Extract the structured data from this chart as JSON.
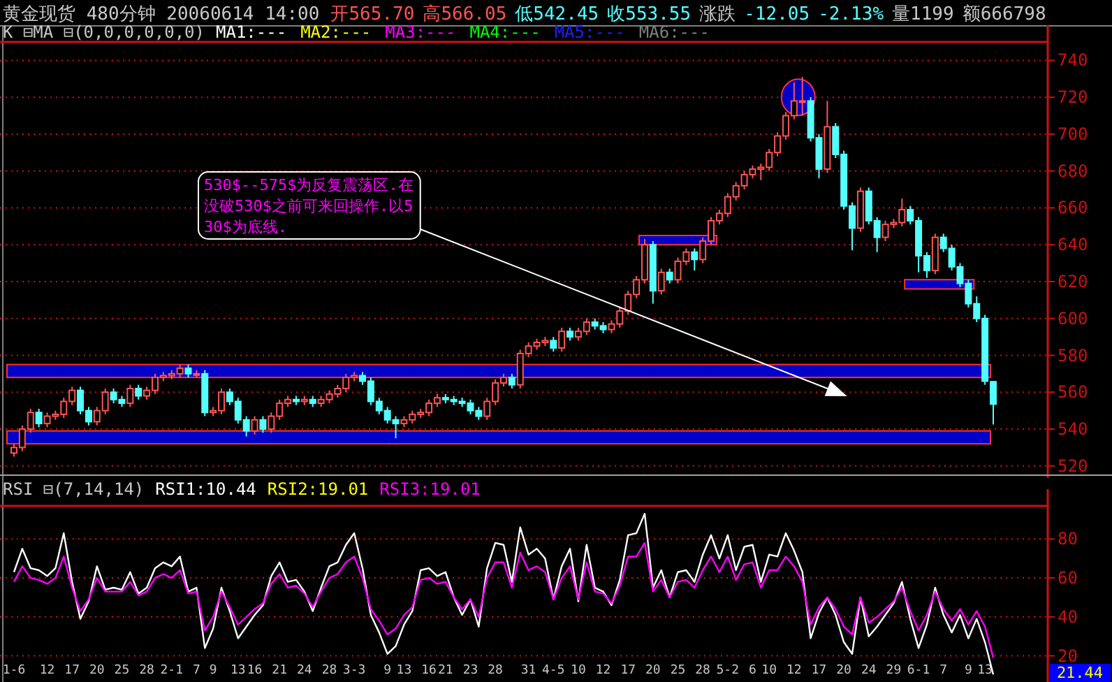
{
  "chart_data": [
    {
      "type": "candlestick",
      "title": "黄金现货 480分钟 20060614 14:00",
      "subtitle": "K ⊟MA ⊟(0,0,0,0,0,0)",
      "annotations": [
        "开565.70",
        "高566.05",
        "低542.45",
        "收553.55",
        "涨跌",
        "-12.05",
        "-2.13%",
        "量1199",
        "额666798",
        "MA1:---",
        "MA2:---",
        "MA3:---",
        "MA4:---",
        "MA5:---",
        "MA6:---",
        "530$--575$为反复震荡区.在没破530$之前可来回操作.以530$为底线."
      ],
      "categories": [
        null,
        null,
        null,
        null,
        null,
        null,
        null,
        null,
        null,
        null,
        null,
        null,
        null,
        null,
        null,
        null,
        null,
        null,
        null,
        null,
        null,
        null,
        null,
        null,
        null,
        null,
        null,
        null,
        null,
        null,
        null,
        null,
        null,
        null,
        null,
        null,
        null,
        null,
        null,
        null,
        null,
        null,
        null,
        null,
        null,
        null,
        null,
        null,
        null,
        null,
        null,
        null,
        null,
        null,
        null,
        null,
        null,
        null,
        null,
        null,
        null,
        null,
        null,
        null,
        null,
        null,
        null,
        null,
        null,
        null,
        null,
        null,
        null,
        null,
        null,
        null,
        null,
        null,
        null,
        null,
        null,
        null,
        null,
        null,
        null,
        null,
        null,
        null,
        null,
        null,
        null,
        null,
        null,
        null,
        null,
        null,
        null,
        null,
        null,
        null,
        null,
        null,
        null,
        null,
        null,
        null,
        null,
        null,
        null,
        null,
        null,
        null,
        null,
        null,
        null,
        null,
        null,
        null,
        null
      ],
      "ohlc": [
        [
          527,
          532,
          525,
          530
        ],
        [
          530,
          542,
          528,
          540
        ],
        [
          540,
          551,
          538,
          549
        ],
        [
          549,
          551,
          541,
          543
        ],
        [
          543,
          549,
          541,
          547
        ],
        [
          547,
          550,
          545,
          548
        ],
        [
          548,
          557,
          546,
          555
        ],
        [
          555,
          563,
          553,
          561
        ],
        [
          561,
          563,
          548,
          550
        ],
        [
          550,
          552,
          542,
          544
        ],
        [
          544,
          552,
          542,
          550
        ],
        [
          550,
          562,
          548,
          560
        ],
        [
          560,
          562,
          554,
          556
        ],
        [
          556,
          558,
          552,
          554
        ],
        [
          554,
          564,
          552,
          562
        ],
        [
          562,
          564,
          556,
          558
        ],
        [
          558,
          563,
          556,
          561
        ],
        [
          561,
          570,
          559,
          568
        ],
        [
          568,
          571,
          566,
          569
        ],
        [
          569,
          572,
          567,
          570
        ],
        [
          570,
          575,
          568,
          573
        ],
        [
          573,
          575,
          568,
          570
        ],
        [
          570,
          572,
          568,
          570
        ],
        [
          570,
          572,
          547,
          549
        ],
        [
          549,
          552,
          547,
          550
        ],
        [
          550,
          562,
          548,
          560
        ],
        [
          560,
          562,
          553,
          555
        ],
        [
          555,
          557,
          543,
          545
        ],
        [
          545,
          547,
          536,
          539
        ],
        [
          539,
          547,
          537,
          545
        ],
        [
          545,
          547,
          538,
          540
        ],
        [
          540,
          549,
          538,
          547
        ],
        [
          547,
          556,
          545,
          554
        ],
        [
          554,
          558,
          552,
          556
        ],
        [
          556,
          558,
          553,
          555
        ],
        [
          555,
          558,
          553,
          556
        ],
        [
          556,
          558,
          552,
          554
        ],
        [
          554,
          558,
          552,
          556
        ],
        [
          556,
          561,
          554,
          559
        ],
        [
          559,
          564,
          557,
          562
        ],
        [
          562,
          570,
          560,
          568
        ],
        [
          568,
          571,
          566,
          569
        ],
        [
          569,
          571,
          564,
          566
        ],
        [
          566,
          568,
          553,
          555
        ],
        [
          555,
          557,
          548,
          550
        ],
        [
          550,
          552,
          543,
          545
        ],
        [
          545,
          547,
          535,
          543
        ],
        [
          543,
          547,
          541,
          545
        ],
        [
          545,
          550,
          543,
          548
        ],
        [
          548,
          551,
          546,
          549
        ],
        [
          549,
          556,
          547,
          554
        ],
        [
          554,
          559,
          552,
          557
        ],
        [
          557,
          559,
          554,
          556
        ],
        [
          556,
          558,
          553,
          555
        ],
        [
          555,
          557,
          552,
          554
        ],
        [
          554,
          556,
          548,
          550
        ],
        [
          550,
          552,
          545,
          547
        ],
        [
          547,
          557,
          545,
          555
        ],
        [
          555,
          567,
          553,
          565
        ],
        [
          565,
          570,
          563,
          568
        ],
        [
          568,
          570,
          562,
          564
        ],
        [
          564,
          583,
          562,
          581
        ],
        [
          581,
          587,
          579,
          585
        ],
        [
          585,
          589,
          583,
          587
        ],
        [
          587,
          590,
          585,
          588
        ],
        [
          588,
          590,
          582,
          584
        ],
        [
          584,
          595,
          582,
          593
        ],
        [
          593,
          595,
          588,
          590
        ],
        [
          590,
          595,
          588,
          593
        ],
        [
          593,
          600,
          591,
          598
        ],
        [
          598,
          600,
          594,
          596
        ],
        [
          596,
          598,
          592,
          594
        ],
        [
          594,
          599,
          592,
          597
        ],
        [
          597,
          606,
          595,
          604
        ],
        [
          604,
          615,
          602,
          613
        ],
        [
          613,
          623,
          611,
          621
        ],
        [
          621,
          643,
          619,
          640
        ],
        [
          640,
          642,
          608,
          615
        ],
        [
          615,
          627,
          613,
          625
        ],
        [
          625,
          627,
          619,
          621
        ],
        [
          621,
          633,
          619,
          631
        ],
        [
          631,
          638,
          629,
          636
        ],
        [
          636,
          638,
          626,
          632
        ],
        [
          632,
          644,
          630,
          642
        ],
        [
          642,
          655,
          640,
          653
        ],
        [
          653,
          659,
          651,
          657
        ],
        [
          657,
          668,
          655,
          666
        ],
        [
          666,
          674,
          664,
          672
        ],
        [
          672,
          680,
          670,
          678
        ],
        [
          678,
          683,
          676,
          681
        ],
        [
          681,
          684,
          675,
          682
        ],
        [
          682,
          692,
          680,
          690
        ],
        [
          690,
          701,
          688,
          699
        ],
        [
          699,
          712,
          697,
          710
        ],
        [
          710,
          728,
          708,
          718
        ],
        [
          718,
          731,
          710,
          718
        ],
        [
          718,
          720,
          696,
          698
        ],
        [
          698,
          700,
          676,
          681
        ],
        [
          681,
          718,
          679,
          704
        ],
        [
          704,
          706,
          687,
          689
        ],
        [
          689,
          691,
          659,
          661
        ],
        [
          661,
          663,
          637,
          649
        ],
        [
          649,
          671,
          647,
          669
        ],
        [
          669,
          671,
          651,
          653
        ],
        [
          653,
          655,
          636,
          644
        ],
        [
          644,
          653,
          642,
          651
        ],
        [
          651,
          654,
          649,
          652
        ],
        [
          652,
          665,
          650,
          659
        ],
        [
          659,
          661,
          651,
          653
        ],
        [
          653,
          655,
          625,
          634
        ],
        [
          634,
          636,
          622,
          626
        ],
        [
          626,
          646,
          624,
          644
        ],
        [
          644,
          646,
          636,
          638
        ],
        [
          638,
          640,
          626,
          628
        ],
        [
          628,
          630,
          617,
          619
        ],
        [
          619,
          621,
          606,
          608
        ],
        [
          608,
          612,
          598,
          600
        ],
        [
          600,
          602,
          564,
          566
        ],
        [
          565.7,
          566.05,
          542.45,
          553.55
        ]
      ],
      "ylim": [
        515,
        750
      ],
      "yticks": [
        520,
        540,
        560,
        580,
        600,
        620,
        640,
        660,
        680,
        700,
        720,
        740
      ],
      "grid": "y",
      "bands": [
        {
          "axis": "y",
          "from": 568,
          "to": 575,
          "color": "#0000c8"
        },
        {
          "axis": "y",
          "from": 532,
          "to": 539,
          "color": "#0000c8"
        }
      ]
    },
    {
      "type": "line",
      "title": "RSI ⊟(7,14,14)",
      "categories": [
        "1-6",
        null,
        null,
        null,
        "12",
        null,
        null,
        "17",
        null,
        null,
        "20",
        null,
        null,
        "25",
        null,
        null,
        "28",
        null,
        null,
        "2-1",
        null,
        null,
        "7",
        null,
        "9",
        null,
        null,
        "13",
        null,
        "16",
        null,
        null,
        "21",
        null,
        null,
        "24",
        null,
        null,
        "28",
        null,
        null,
        "3-3",
        null,
        null,
        null,
        "9",
        null,
        "13",
        null,
        null,
        "16",
        null,
        "21",
        null,
        null,
        "23",
        null,
        null,
        "28",
        null,
        null,
        null,
        "31",
        null,
        null,
        "4-5",
        null,
        null,
        "10",
        null,
        null,
        "12",
        null,
        null,
        "17",
        null,
        null,
        "20",
        null,
        null,
        "25",
        null,
        null,
        "28",
        null,
        null,
        "5-2",
        null,
        null,
        "6",
        null,
        "10",
        null,
        null,
        "12",
        null,
        null,
        "17",
        null,
        null,
        "20",
        null,
        null,
        "24",
        null,
        null,
        "29",
        null,
        null,
        "6-1",
        null,
        null,
        "7",
        null,
        null,
        "9",
        null,
        "13",
        null
      ],
      "series": [
        {
          "name": "RSI1:10.44",
          "color": "#ffffff",
          "values": [
            63,
            75,
            65,
            64,
            61,
            65,
            83,
            58,
            39,
            48,
            66,
            54,
            55,
            54,
            63,
            52,
            55,
            65,
            68,
            66,
            71,
            53,
            55,
            24,
            34,
            55,
            43,
            29,
            35,
            41,
            46,
            61,
            68,
            58,
            59,
            53,
            43,
            55,
            66,
            68,
            77,
            83,
            65,
            41,
            32,
            21,
            25,
            36,
            43,
            64,
            65,
            61,
            63,
            50,
            41,
            49,
            35,
            65,
            78,
            77,
            58,
            86,
            72,
            75,
            70,
            49,
            66,
            75,
            48,
            77,
            55,
            53,
            46,
            59,
            82,
            83,
            93,
            55,
            64,
            50,
            63,
            64,
            58,
            72,
            82,
            70,
            82,
            64,
            76,
            77,
            58,
            72,
            71,
            83,
            74,
            63,
            29,
            42,
            50,
            41,
            27,
            21,
            50,
            30,
            35,
            41,
            47,
            58,
            39,
            24,
            36,
            55,
            41,
            32,
            41,
            29,
            39,
            27,
            10.44
          ]
        },
        {
          "name": "RSI2:19.01",
          "color": "#ffff00",
          "values": [
            null,
            null,
            null,
            null,
            null,
            null,
            null,
            null,
            null,
            null,
            null,
            null,
            null,
            null,
            null,
            null,
            null,
            null,
            null,
            null,
            null,
            null,
            null,
            null,
            null,
            null,
            null,
            null,
            null,
            null,
            null,
            null,
            null,
            null,
            null,
            null,
            null,
            null,
            null,
            null,
            null,
            null,
            null,
            null,
            null,
            null,
            null,
            null,
            null,
            null,
            null,
            null,
            null,
            null,
            null,
            null,
            null,
            null,
            null,
            null,
            null,
            null,
            null,
            null,
            null,
            null,
            null,
            null,
            null,
            null,
            null,
            null,
            null,
            null,
            null,
            null,
            null,
            null,
            null,
            null,
            null,
            null,
            null,
            null,
            null,
            null,
            null,
            null,
            null,
            null,
            null,
            null,
            null,
            null,
            null,
            null,
            null,
            null,
            null,
            null,
            null,
            null,
            null,
            null,
            null,
            null,
            null,
            null,
            null,
            null,
            null,
            null,
            null,
            null,
            null,
            null,
            null,
            null,
            null
          ]
        },
        {
          "name": "RSI3:19.01",
          "color": "#ff00ff",
          "values": [
            58,
            66,
            60,
            59,
            57,
            60,
            71,
            55,
            43,
            49,
            60,
            53,
            53,
            53,
            58,
            51,
            53,
            60,
            62,
            60,
            64,
            52,
            53,
            33,
            40,
            53,
            45,
            36,
            40,
            44,
            47,
            57,
            62,
            55,
            56,
            52,
            45,
            53,
            60,
            62,
            68,
            71,
            60,
            44,
            38,
            31,
            34,
            41,
            45,
            59,
            60,
            57,
            58,
            50,
            44,
            49,
            40,
            60,
            68,
            68,
            55,
            73,
            64,
            66,
            63,
            49,
            60,
            66,
            49,
            68,
            53,
            52,
            47,
            56,
            71,
            71,
            78,
            53,
            59,
            50,
            58,
            59,
            55,
            64,
            71,
            63,
            71,
            59,
            67,
            68,
            55,
            64,
            64,
            71,
            66,
            58,
            36,
            45,
            50,
            44,
            35,
            31,
            50,
            37,
            40,
            44,
            48,
            55,
            43,
            33,
            41,
            53,
            44,
            38,
            44,
            36,
            43,
            35,
            19.01
          ]
        }
      ],
      "ylim": [
        8,
        97
      ],
      "yticks": [
        20,
        40,
        60,
        80
      ],
      "grid": "y",
      "legend": "top left",
      "annotations": [
        "21.44"
      ]
    }
  ]
}
